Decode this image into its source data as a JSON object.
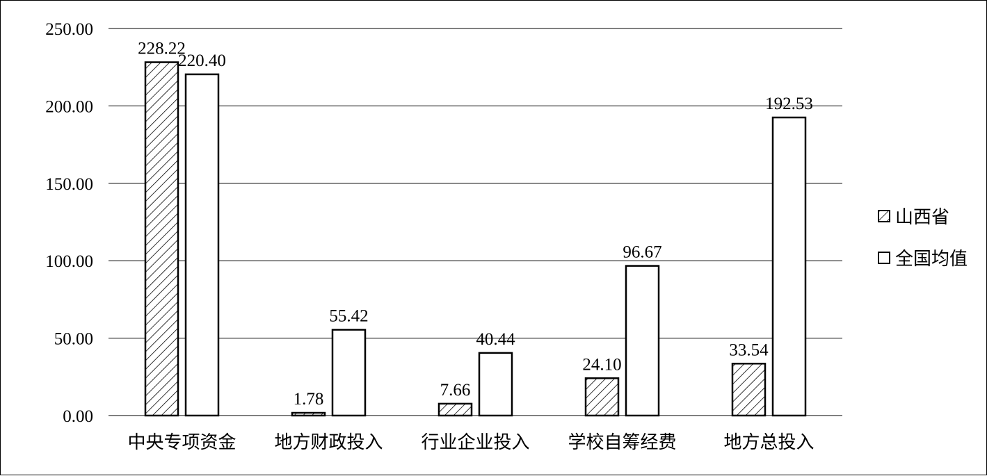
{
  "chart_data": {
    "type": "bar",
    "title": "",
    "xlabel": "",
    "ylabel": "",
    "ylim": [
      0,
      250
    ],
    "yticks": [
      "0.00",
      "50.00",
      "100.00",
      "150.00",
      "200.00",
      "250.00"
    ],
    "grid": true,
    "legend_position": "right",
    "categories": [
      "中央专项资金",
      "地方财政投入",
      "行业企业投入",
      "学校自筹经费",
      "地方总投入"
    ],
    "series": [
      {
        "name": "山西省",
        "values": [
          228.22,
          1.78,
          7.66,
          24.1,
          33.54
        ],
        "labels": [
          "228.22",
          "1.78",
          "7.66",
          "24.10",
          "33.54"
        ],
        "pattern": "diagonal-hatch"
      },
      {
        "name": "全国均值",
        "values": [
          220.4,
          55.42,
          40.44,
          96.67,
          192.53
        ],
        "labels": [
          "220.40",
          "55.42",
          "40.44",
          "96.67",
          "192.53"
        ],
        "pattern": "none"
      }
    ]
  }
}
